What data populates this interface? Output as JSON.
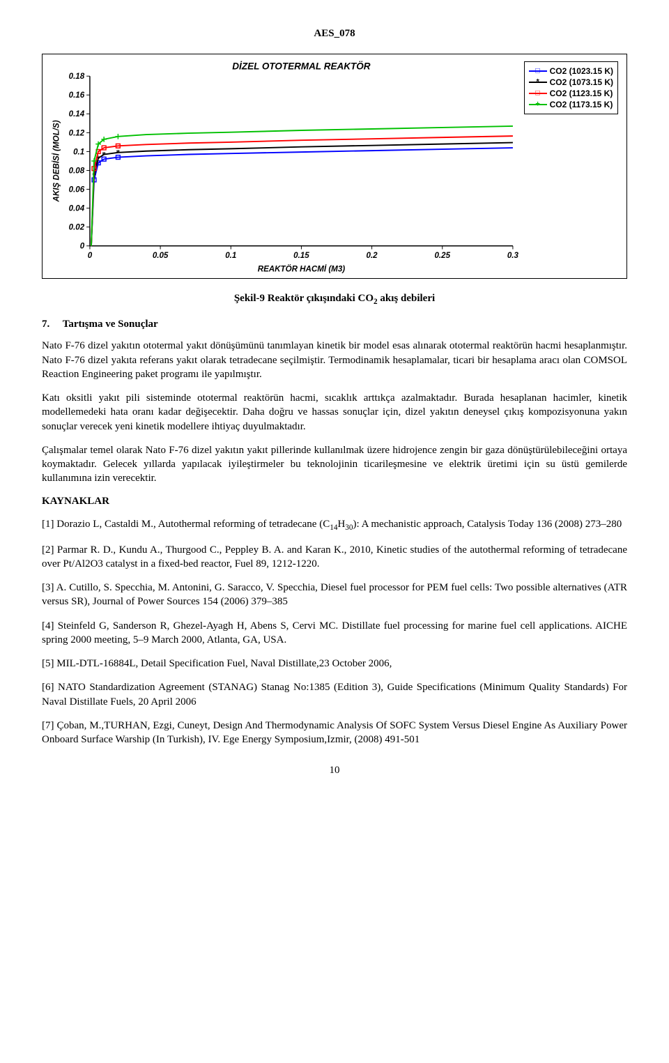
{
  "header": {
    "code": "AES_078"
  },
  "chart": {
    "type": "line",
    "title": "DİZEL OTOTERMAL REAKTÖR",
    "title_fontsize": 14,
    "title_weight": "bold",
    "title_style": "italic",
    "xlabel": "REAKTÖR HACMİ (M3)",
    "ylabel": "AKIŞ DEBİSİ (MOL/S)",
    "label_fontsize": 12,
    "label_weight": "bold",
    "label_style": "italic",
    "xlim": [
      0,
      0.3
    ],
    "ylim": [
      0,
      0.18
    ],
    "xticks": [
      0,
      0.05,
      0.1,
      0.15,
      0.2,
      0.25,
      0.3
    ],
    "yticks": [
      0,
      0.02,
      0.04,
      0.06,
      0.08,
      0.1,
      0.12,
      0.14,
      0.16,
      0.18
    ],
    "tick_fontsize": 12,
    "tick_weight": "bold",
    "tick_style": "italic",
    "background_color": "#ffffff",
    "axis_color": "#000000",
    "series": [
      {
        "label": "CO2 (1023.15 K)",
        "color": "#0000ff",
        "marker": "square",
        "data": [
          [
            0.001,
            0.0
          ],
          [
            0.003,
            0.07
          ],
          [
            0.006,
            0.088
          ],
          [
            0.01,
            0.092
          ],
          [
            0.02,
            0.094
          ],
          [
            0.04,
            0.0955
          ],
          [
            0.07,
            0.097
          ],
          [
            0.1,
            0.098
          ],
          [
            0.15,
            0.0995
          ],
          [
            0.2,
            0.101
          ],
          [
            0.25,
            0.1025
          ],
          [
            0.3,
            0.104
          ]
        ]
      },
      {
        "label": "CO2 (1073.15 K)",
        "color": "#000000",
        "marker": "star",
        "data": [
          [
            0.001,
            0.0
          ],
          [
            0.003,
            0.075
          ],
          [
            0.006,
            0.093
          ],
          [
            0.01,
            0.097
          ],
          [
            0.02,
            0.099
          ],
          [
            0.04,
            0.1005
          ],
          [
            0.07,
            0.102
          ],
          [
            0.1,
            0.103
          ],
          [
            0.15,
            0.105
          ],
          [
            0.2,
            0.1065
          ],
          [
            0.25,
            0.108
          ],
          [
            0.3,
            0.1095
          ]
        ]
      },
      {
        "label": "CO2 (1123.15 K)",
        "color": "#ff0000",
        "marker": "square",
        "data": [
          [
            0.001,
            0.0
          ],
          [
            0.003,
            0.082
          ],
          [
            0.006,
            0.1
          ],
          [
            0.01,
            0.104
          ],
          [
            0.02,
            0.106
          ],
          [
            0.04,
            0.1075
          ],
          [
            0.07,
            0.109
          ],
          [
            0.1,
            0.11
          ],
          [
            0.15,
            0.112
          ],
          [
            0.2,
            0.1135
          ],
          [
            0.25,
            0.115
          ],
          [
            0.3,
            0.1165
          ]
        ]
      },
      {
        "label": "CO2 (1173.15 K)",
        "color": "#00c000",
        "marker": "plus",
        "data": [
          [
            0.001,
            0.0
          ],
          [
            0.003,
            0.09
          ],
          [
            0.006,
            0.108
          ],
          [
            0.01,
            0.113
          ],
          [
            0.02,
            0.116
          ],
          [
            0.04,
            0.118
          ],
          [
            0.07,
            0.1195
          ],
          [
            0.1,
            0.1205
          ],
          [
            0.15,
            0.1225
          ],
          [
            0.2,
            0.124
          ],
          [
            0.25,
            0.1255
          ],
          [
            0.3,
            0.127
          ]
        ]
      }
    ]
  },
  "caption": {
    "prefix": "Şekil-9 Reaktör çıkışındaki CO",
    "sub": "2",
    "suffix": " akış debileri"
  },
  "section": {
    "number": "7.",
    "title": "Tartışma ve Sonuçlar"
  },
  "paragraphs": {
    "p1": "Nato F-76 dizel yakıtın ototermal yakıt dönüşümünü tanımlayan kinetik bir model esas alınarak ototermal reaktörün hacmi hesaplanmıştır. Nato F-76 dizel yakıta referans yakıt olarak tetradecane seçilmiştir. Termodinamik hesaplamalar, ticari bir hesaplama aracı olan COMSOL Reaction Engineering paket programı ile yapılmıştır.",
    "p2": "Katı oksitli yakıt pili sisteminde ototermal reaktörün hacmi, sıcaklık arttıkça azalmaktadır. Burada hesaplanan hacimler, kinetik modellemedeki hata oranı kadar değişecektir. Daha doğru ve hassas sonuçlar için, dizel yakıtın deneysel çıkış kompozisyonuna yakın sonuçlar verecek yeni kinetik modellere ihtiyaç duyulmaktadır.",
    "p3": "Çalışmalar temel olarak Nato F-76 dizel yakıtın yakıt pillerinde kullanılmak üzere hidrojence zengin bir gaza dönüştürülebileceğini ortaya koymaktadır. Gelecek yıllarda yapılacak iyileştirmeler bu teknolojinin ticarileşmesine ve elektrik üretimi için su üstü gemilerde kullanımına izin verecektir."
  },
  "refs_heading": "KAYNAKLAR",
  "references": {
    "r1a": "[1] Dorazio L, Castaldi M., Autothermal reforming of tetradecane (C",
    "r1_sub1": "14",
    "r1b": "H",
    "r1_sub2": "30",
    "r1c": "): A mechanistic approach, Catalysis Today 136 (2008) 273–280",
    "r2": "[2] Parmar R. D., Kundu A., Thurgood C., Peppley B. A. and Karan K., 2010, Kinetic studies of the autothermal reforming of tetradecane over Pt/Al2O3 catalyst in a fixed-bed reactor, Fuel 89, 1212-1220.",
    "r3": "[3] A. Cutillo, S. Specchia, M. Antonini, G. Saracco, V. Specchia, Diesel fuel processor for PEM fuel cells: Two possible alternatives (ATR versus SR), Journal of Power Sources 154 (2006) 379–385",
    "r4": "[4] Steinfeld G, Sanderson R, Ghezel-Ayagh H, Abens S, Cervi MC. Distillate fuel processing for marine fuel cell applications. AICHE spring 2000 meeting, 5–9 March 2000, Atlanta, GA, USA.",
    "r5": "[5] MIL-DTL-16884L, Detail Specification Fuel, Naval Distillate,23 October 2006,",
    "r6": "[6] NATO Standardization Agreement (STANAG) Stanag No:1385 (Edition 3), Guide Specifications (Minimum Quality Standards) For Naval Distillate Fuels, 20 April 2006",
    "r7": "[7] Çoban, M.,TURHAN, Ezgi, Cuneyt, Design And Thermodynamic Analysis Of SOFC System Versus Diesel Engine As Auxiliary Power Onboard Surface Warship (In Turkish), IV. Ege Energy Symposium,Izmir, (2008)  491-501"
  },
  "page_number": "10"
}
